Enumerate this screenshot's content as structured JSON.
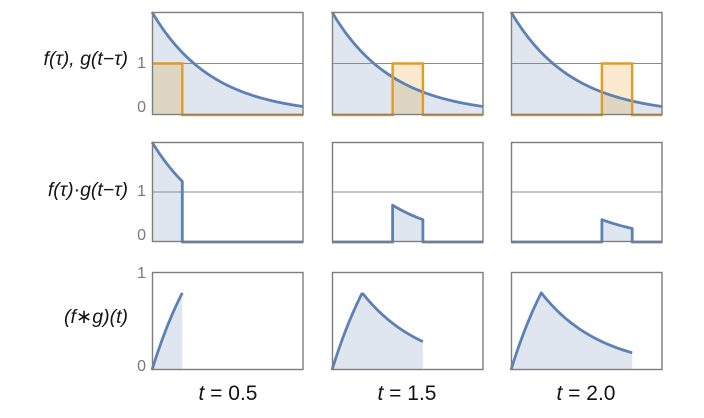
{
  "labels": {
    "rows": [
      "f(τ), g(t−τ)",
      "f(τ)·g(t−τ)",
      "(f∗g)(t)"
    ],
    "cols": [
      {
        "var": "t",
        "rest": " = 0.5"
      },
      {
        "var": "t",
        "rest": " = 1.5"
      },
      {
        "var": "t",
        "rest": " = 2.0"
      }
    ]
  },
  "ticks": {
    "one": "1",
    "zero": "0"
  },
  "colors": {
    "curve_blue": "#5e81b5",
    "curve_orange": "#e19c24",
    "blue_fill": "rgba(94,129,181,0.20)",
    "orange_fill": "rgba(225,156,36,0.22)",
    "frame_gray": "#7d7d7d",
    "grid_gray": "#8c8c8c",
    "tick_text": "#7a7a7a",
    "label_text": "#141414"
  },
  "chart_data": {
    "type": "line",
    "layout": "3x3 small multiples; columns are t values, rows are: signal overlay, pointwise product, running convolution",
    "x_range": [
      0,
      2.5
    ],
    "t_values": [
      0.5,
      1.5,
      2.0
    ],
    "f": {
      "name": "f(τ)",
      "formula": "2·e^(−τ)",
      "amplitude": 2,
      "decay_rate": 1
    },
    "g": {
      "name": "g(t−τ)",
      "formula": "unit-height box: 1 for t−0.5 ≤ τ ≤ t",
      "height": 1,
      "box_width": 0.5
    },
    "rows": [
      {
        "label": "f(τ), g(t−τ)",
        "y_range": [
          0,
          2
        ],
        "y_ticks": [
          1,
          0
        ],
        "gridline_y": 1,
        "g_box_intervals": [
          [
            0,
            0.5
          ],
          [
            1,
            1.5
          ],
          [
            1.5,
            2
          ]
        ]
      },
      {
        "label": "f(τ)·g(t−τ)",
        "y_range": [
          0,
          2
        ],
        "y_ticks": [
          1,
          0
        ],
        "gridline_y": 1,
        "product_support": [
          [
            0,
            0.5
          ],
          [
            1,
            1.5
          ],
          [
            1.5,
            2
          ]
        ],
        "product_endpoint_values": [
          [
            2,
            1.213
          ],
          [
            0.736,
            0.446
          ],
          [
            0.446,
            0.271
          ]
        ]
      },
      {
        "label": "(f∗g)(t)",
        "y_range": [
          0,
          1
        ],
        "y_ticks": [
          1,
          0
        ],
        "curve": "2(1−e^−t) for t ≤ 0.5; peak 0.787 at t = 0.5; then 2(e^0.5−1)e^−t",
        "values_at_t": [
          0.787,
          0.289,
          0.176
        ]
      }
    ]
  }
}
